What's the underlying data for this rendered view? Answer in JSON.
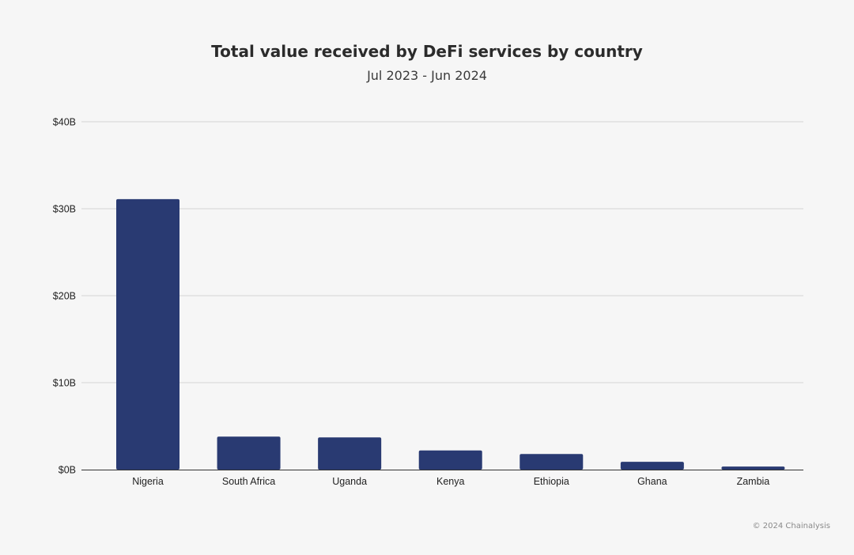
{
  "chart_data": {
    "type": "bar",
    "title": "Total value received by DeFi services by country",
    "subtitle": "Jul 2023 - Jun 2024",
    "xlabel": "",
    "ylabel": "",
    "categories": [
      "Nigeria",
      "South Africa",
      "Uganda",
      "Kenya",
      "Ethiopia",
      "Ghana",
      "Zambia"
    ],
    "values": [
      31.1,
      3.8,
      3.7,
      2.2,
      1.8,
      0.9,
      0.35
    ],
    "unit": "$B",
    "ylim": [
      0,
      40
    ],
    "yticks": [
      0,
      10,
      20,
      30,
      40
    ],
    "ytick_labels": [
      "$0B",
      "$10B",
      "$20B",
      "$30B",
      "$40B"
    ],
    "grid": true,
    "legend": "none",
    "bar_color": "#293a72"
  },
  "footer": {
    "copyright": "© 2024 Chainalysis"
  }
}
